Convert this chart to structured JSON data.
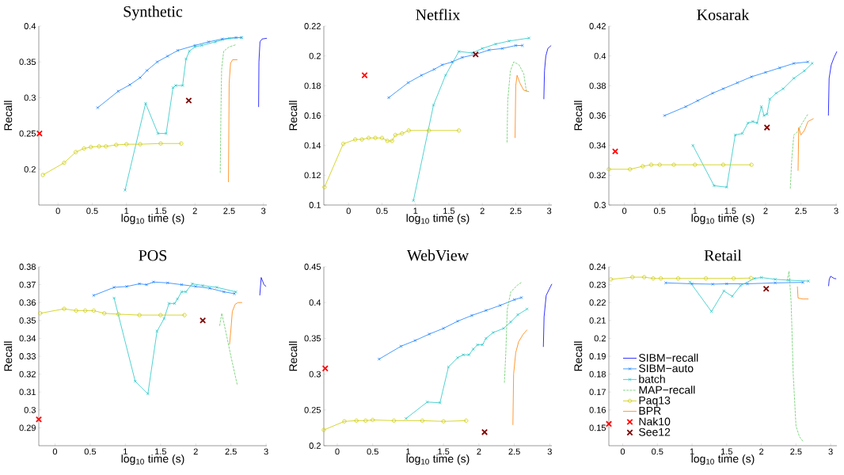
{
  "chart_data": [
    {
      "type": "line",
      "title": "Synthetic",
      "xlabel": "log$_{10}$ time (s)",
      "ylabel": "Recall",
      "xlim": [
        -0.28,
        3.05
      ],
      "ylim": [
        0.15,
        0.4
      ],
      "xticks": [
        0,
        0.5,
        1,
        1.5,
        2,
        2.5,
        3
      ],
      "yticks": [
        0.2,
        0.25,
        0.3,
        0.35,
        0.4
      ],
      "series": [
        {
          "color": "#0000ff",
          "x": [
            2.93,
            2.935,
            2.95,
            2.98,
            3.05
          ],
          "values": [
            0.287,
            0.35,
            0.378,
            0.382,
            0.383
          ]
        },
        {
          "color": "#1a80ff",
          "marker": "cross",
          "x": [
            0.58,
            0.88,
            1.05,
            1.2,
            1.3,
            1.45,
            1.6,
            1.75,
            2.0,
            2.2,
            2.4,
            2.6,
            2.68
          ],
          "values": [
            0.286,
            0.309,
            0.318,
            0.328,
            0.338,
            0.35,
            0.358,
            0.366,
            0.373,
            0.378,
            0.382,
            0.384,
            0.384
          ]
        },
        {
          "color": "#26c6c6",
          "marker": "cross",
          "x": [
            0.98,
            1.28,
            1.46,
            1.58,
            1.68,
            1.72,
            1.82,
            1.87,
            1.92,
            2.0,
            2.1,
            2.3,
            2.5,
            2.68
          ],
          "values": [
            0.171,
            0.292,
            0.25,
            0.25,
            0.314,
            0.317,
            0.317,
            0.354,
            0.365,
            0.371,
            0.373,
            0.378,
            0.383,
            0.384
          ]
        },
        {
          "color": "#66cc66",
          "line_style": "dashed",
          "x": [
            2.37,
            2.38,
            2.39,
            2.42,
            2.5,
            2.6
          ],
          "values": [
            0.195,
            0.28,
            0.34,
            0.365,
            0.371,
            0.374
          ]
        },
        {
          "color": "#cccc00",
          "marker": "circle",
          "x": [
            -0.22,
            0.09,
            0.26,
            0.38,
            0.48,
            0.6,
            0.7,
            0.85,
            1.0,
            1.2,
            1.5,
            1.8
          ],
          "values": [
            0.192,
            0.209,
            0.224,
            0.229,
            0.231,
            0.232,
            0.232,
            0.234,
            0.235,
            0.235,
            0.236,
            0.236
          ]
        },
        {
          "color": "#ff8000",
          "x": [
            2.49,
            2.5,
            2.52,
            2.55,
            2.62
          ],
          "values": [
            0.182,
            0.32,
            0.348,
            0.353,
            0.353
          ]
        },
        {
          "type": "scatter",
          "color": "#ff0000",
          "marker": "cross",
          "x": [
            -0.27
          ],
          "values": [
            0.25
          ]
        },
        {
          "type": "scatter",
          "color": "#800000",
          "marker": "cross",
          "x": [
            1.91
          ],
          "values": [
            0.296
          ]
        }
      ]
    },
    {
      "type": "line",
      "title": "Netflix",
      "xlabel": "log$_{10}$ time (s)",
      "ylabel": "Recall",
      "xlim": [
        -0.37,
        3.04
      ],
      "ylim": [
        0.1,
        0.22
      ],
      "xticks": [
        0,
        0.5,
        1,
        1.5,
        2,
        2.5,
        3
      ],
      "yticks": [
        0.1,
        0.12,
        0.14,
        0.16,
        0.18,
        0.2,
        0.22
      ],
      "series": [
        {
          "color": "#0000ff",
          "x": [
            2.92,
            2.93,
            2.95,
            2.98,
            3.03
          ],
          "values": [
            0.171,
            0.19,
            0.2,
            0.205,
            0.207
          ]
        },
        {
          "color": "#1a80ff",
          "marker": "cross",
          "x": [
            0.6,
            0.89,
            1.09,
            1.28,
            1.4,
            1.55,
            1.7,
            1.9,
            2.1,
            2.3,
            2.5,
            2.6
          ],
          "values": [
            0.172,
            0.182,
            0.187,
            0.191,
            0.194,
            0.196,
            0.199,
            0.201,
            0.204,
            0.205,
            0.207,
            0.207
          ]
        },
        {
          "color": "#26c6c6",
          "marker": "cross",
          "x": [
            0.97,
            1.27,
            1.45,
            1.65,
            1.85,
            2.0,
            2.2,
            2.4,
            2.7
          ],
          "values": [
            0.103,
            0.167,
            0.187,
            0.203,
            0.202,
            0.205,
            0.208,
            0.21,
            0.212
          ]
        },
        {
          "color": "#66cc66",
          "line_style": "dashed",
          "x": [
            2.37,
            2.38,
            2.42,
            2.47,
            2.55,
            2.62,
            2.66
          ],
          "values": [
            0.142,
            0.17,
            0.19,
            0.196,
            0.194,
            0.188,
            0.176
          ]
        },
        {
          "color": "#cccc00",
          "marker": "circle",
          "x": [
            -0.36,
            -0.08,
            0.1,
            0.2,
            0.3,
            0.4,
            0.5,
            0.58,
            0.65,
            0.7,
            0.8,
            0.9,
            1.2,
            1.65
          ],
          "values": [
            0.112,
            0.141,
            0.144,
            0.144,
            0.145,
            0.145,
            0.145,
            0.143,
            0.143,
            0.147,
            0.148,
            0.15,
            0.15,
            0.15
          ]
        },
        {
          "color": "#ff8000",
          "x": [
            2.49,
            2.5,
            2.52,
            2.56,
            2.62,
            2.7
          ],
          "values": [
            0.145,
            0.18,
            0.187,
            0.182,
            0.177,
            0.176
          ]
        },
        {
          "type": "scatter",
          "color": "#ff0000",
          "marker": "cross",
          "x": [
            0.24
          ],
          "values": [
            0.187
          ]
        },
        {
          "type": "scatter",
          "color": "#800000",
          "marker": "cross",
          "x": [
            1.9
          ],
          "values": [
            0.201
          ]
        }
      ]
    },
    {
      "type": "line",
      "title": "Kosarak",
      "xlabel": "log$_{10}$ time (s)",
      "ylabel": "Recall",
      "xlim": [
        -0.22,
        3.01
      ],
      "ylim": [
        0.3,
        0.42
      ],
      "xticks": [
        0,
        0.5,
        1,
        1.5,
        2,
        2.5,
        3
      ],
      "yticks": [
        0.3,
        0.32,
        0.34,
        0.36,
        0.38,
        0.4,
        0.42
      ],
      "series": [
        {
          "color": "#0000ff",
          "x": [
            2.89,
            2.9,
            2.93,
            2.97,
            3.01
          ],
          "values": [
            0.36,
            0.385,
            0.394,
            0.399,
            0.403
          ]
        },
        {
          "color": "#1a80ff",
          "marker": "cross",
          "x": [
            0.57,
            0.87,
            1.04,
            1.25,
            1.4,
            1.6,
            1.8,
            2.0,
            2.2,
            2.4,
            2.6
          ],
          "values": [
            0.36,
            0.366,
            0.37,
            0.375,
            0.378,
            0.382,
            0.386,
            0.389,
            0.392,
            0.395,
            0.396
          ]
        },
        {
          "color": "#26c6c6",
          "marker": "cross",
          "x": [
            0.97,
            1.27,
            1.45,
            1.57,
            1.67,
            1.75,
            1.82,
            1.88,
            1.94,
            1.98,
            2.02,
            2.06,
            2.15,
            2.25,
            2.4,
            2.55,
            2.66
          ],
          "values": [
            0.34,
            0.313,
            0.312,
            0.347,
            0.348,
            0.355,
            0.356,
            0.355,
            0.366,
            0.36,
            0.361,
            0.371,
            0.375,
            0.378,
            0.385,
            0.39,
            0.395
          ]
        },
        {
          "color": "#66cc66",
          "line_style": "dashed",
          "x": [
            2.35,
            2.37,
            2.4,
            2.45,
            2.52,
            2.6
          ],
          "values": [
            0.311,
            0.33,
            0.347,
            0.349,
            0.355,
            0.361
          ]
        },
        {
          "color": "#cccc00",
          "marker": "circle",
          "x": [
            -0.22,
            0.08,
            0.26,
            0.38,
            0.5,
            0.7,
            1.0,
            1.4,
            1.8
          ],
          "values": [
            0.324,
            0.324,
            0.326,
            0.327,
            0.327,
            0.327,
            0.327,
            0.327,
            0.327
          ]
        },
        {
          "color": "#ff8000",
          "x": [
            2.46,
            2.47,
            2.5,
            2.55,
            2.6,
            2.68
          ],
          "values": [
            0.323,
            0.352,
            0.347,
            0.35,
            0.356,
            0.358
          ]
        },
        {
          "type": "scatter",
          "color": "#ff0000",
          "marker": "cross",
          "x": [
            -0.13
          ],
          "values": [
            0.336
          ]
        },
        {
          "type": "scatter",
          "color": "#800000",
          "marker": "cross",
          "x": [
            2.02
          ],
          "values": [
            0.352
          ]
        }
      ]
    },
    {
      "type": "line",
      "title": "POS",
      "xlabel": "log$_{10}$ time (s)",
      "ylabel": "Recall",
      "xlim": [
        -0.23,
        3.01
      ],
      "ylim": [
        0.28,
        0.38
      ],
      "xticks": [
        0,
        0.5,
        1,
        1.5,
        2,
        2.5,
        3
      ],
      "yticks": [
        0.29,
        0.3,
        0.31,
        0.32,
        0.33,
        0.34,
        0.35,
        0.36,
        0.37,
        0.38
      ],
      "series": [
        {
          "color": "#0000ff",
          "x": [
            2.91,
            2.93,
            2.97,
            3.0
          ],
          "values": [
            0.364,
            0.374,
            0.37,
            0.369
          ]
        },
        {
          "color": "#1a80ff",
          "marker": "cross",
          "x": [
            0.55,
            0.84,
            1.02,
            1.2,
            1.3,
            1.4,
            1.6,
            1.8,
            2.0,
            2.2,
            2.4,
            2.55
          ],
          "values": [
            0.364,
            0.3685,
            0.369,
            0.3705,
            0.37,
            0.3715,
            0.371,
            0.37,
            0.369,
            0.368,
            0.366,
            0.365
          ]
        },
        {
          "color": "#26c6c6",
          "marker": "cross",
          "x": [
            0.84,
            1.14,
            1.32,
            1.45,
            1.55,
            1.62,
            1.7,
            1.74,
            1.8,
            1.86,
            1.95,
            2.1,
            2.3,
            2.57
          ],
          "values": [
            0.3625,
            0.316,
            0.309,
            0.344,
            0.351,
            0.3595,
            0.3595,
            0.362,
            0.366,
            0.366,
            0.3705,
            0.3695,
            0.3685,
            0.366
          ]
        },
        {
          "color": "#66cc66",
          "line_style": "dashed",
          "x": [
            2.34,
            2.37,
            2.42,
            2.5,
            2.59
          ],
          "values": [
            0.347,
            0.354,
            0.345,
            0.33,
            0.314
          ]
        },
        {
          "color": "#cccc00",
          "marker": "circle",
          "x": [
            -0.21,
            0.13,
            0.3,
            0.43,
            0.55,
            0.7,
            0.9,
            1.2,
            1.5,
            1.84
          ],
          "values": [
            0.354,
            0.3565,
            0.3555,
            0.3555,
            0.3555,
            0.354,
            0.3535,
            0.353,
            0.353,
            0.353
          ]
        },
        {
          "color": "#ff8000",
          "x": [
            2.48,
            2.5,
            2.52,
            2.56,
            2.6,
            2.66
          ],
          "values": [
            0.3365,
            0.345,
            0.355,
            0.359,
            0.36,
            0.36
          ]
        },
        {
          "type": "scatter",
          "color": "#ff0000",
          "marker": "cross",
          "x": [
            -0.23
          ],
          "values": [
            0.2947
          ]
        },
        {
          "type": "scatter",
          "color": "#800000",
          "marker": "cross",
          "x": [
            2.1
          ],
          "values": [
            0.35
          ]
        }
      ]
    },
    {
      "type": "line",
      "title": "WebView",
      "xlabel": "log$_{10}$ time (s)",
      "ylabel": "Recall",
      "xlim": [
        -0.19,
        3.03
      ],
      "ylim": [
        0.2,
        0.45
      ],
      "xticks": [
        0,
        0.5,
        1,
        1.5,
        2,
        2.5,
        3
      ],
      "yticks": [
        0.2,
        0.25,
        0.3,
        0.35,
        0.4,
        0.45
      ],
      "series": [
        {
          "color": "#0000ff",
          "x": [
            2.91,
            2.92,
            2.95,
            3.0,
            3.03
          ],
          "values": [
            0.338,
            0.38,
            0.41,
            0.42,
            0.426
          ]
        },
        {
          "color": "#1a80ff",
          "marker": "cross",
          "x": [
            0.59,
            0.9,
            1.1,
            1.3,
            1.5,
            1.7,
            1.9,
            2.1,
            2.3,
            2.5,
            2.6
          ],
          "values": [
            0.321,
            0.339,
            0.347,
            0.356,
            0.364,
            0.374,
            0.382,
            0.389,
            0.396,
            0.404,
            0.407
          ]
        },
        {
          "color": "#26c6c6",
          "marker": "cross",
          "x": [
            0.97,
            1.27,
            1.45,
            1.57,
            1.7,
            1.78,
            1.86,
            1.92,
            1.98,
            2.05,
            2.1,
            2.2,
            2.35,
            2.45,
            2.55,
            2.68
          ],
          "values": [
            0.238,
            0.261,
            0.26,
            0.31,
            0.323,
            0.327,
            0.327,
            0.335,
            0.341,
            0.341,
            0.35,
            0.358,
            0.364,
            0.373,
            0.383,
            0.391
          ]
        },
        {
          "color": "#66cc66",
          "line_style": "dashed",
          "x": [
            2.36,
            2.38,
            2.4,
            2.45,
            2.55,
            2.6
          ],
          "values": [
            0.288,
            0.33,
            0.39,
            0.415,
            0.425,
            0.428
          ]
        },
        {
          "color": "#cccc00",
          "marker": "circle",
          "x": [
            -0.19,
            0.1,
            0.27,
            0.4,
            0.5,
            0.8,
            1.2,
            1.5,
            1.82
          ],
          "values": [
            0.222,
            0.234,
            0.235,
            0.235,
            0.236,
            0.235,
            0.235,
            0.234,
            0.235
          ]
        },
        {
          "color": "#ff8000",
          "x": [
            2.48,
            2.49,
            2.52,
            2.56,
            2.62,
            2.68
          ],
          "values": [
            0.229,
            0.3,
            0.33,
            0.345,
            0.355,
            0.362
          ]
        },
        {
          "type": "scatter",
          "color": "#ff0000",
          "marker": "cross",
          "x": [
            -0.17
          ],
          "values": [
            0.308
          ]
        },
        {
          "type": "scatter",
          "color": "#800000",
          "marker": "cross",
          "x": [
            2.08
          ],
          "values": [
            0.219
          ]
        }
      ]
    },
    {
      "type": "line",
      "title": "Retail",
      "xlabel": "log$_{10}$ time (s)",
      "ylabel": "Recall",
      "xlim": [
        -0.2,
        3.09
      ],
      "ylim": [
        0.14,
        0.24
      ],
      "xticks": [
        0,
        0.5,
        1,
        1.5,
        2,
        2.5,
        3
      ],
      "yticks": [
        0.15,
        0.16,
        0.17,
        0.18,
        0.19,
        0.2,
        0.21,
        0.22,
        0.23,
        0.24
      ],
      "legend": "bottom left",
      "series": [
        {
          "name": "SIBM−recall",
          "color": "#0000ff",
          "x": [
            2.97,
            2.98,
            3.0,
            3.05,
            3.08
          ],
          "values": [
            0.2292,
            0.233,
            0.2347,
            0.2335,
            0.2333
          ]
        },
        {
          "name": "SIBM−auto",
          "color": "#1a80ff",
          "marker": "cross",
          "x": [
            0.62,
            1.0,
            1.3,
            1.5,
            1.8,
            2.2,
            2.6
          ],
          "values": [
            0.231,
            0.2305,
            0.2303,
            0.2305,
            0.2305,
            0.231,
            0.2313
          ]
        },
        {
          "name": "batch",
          "color": "#26c6c6",
          "marker": "cross",
          "x": [
            0.97,
            1.28,
            1.46,
            1.58,
            1.7,
            1.9,
            2.0,
            2.2,
            2.4,
            2.68
          ],
          "values": [
            0.2315,
            0.215,
            0.2265,
            0.2235,
            0.2295,
            0.2335,
            0.234,
            0.233,
            0.2325,
            0.232
          ]
        },
        {
          "name": "MAP−recall",
          "color": "#66cc66",
          "line_style": "dashed",
          "x": [
            2.37,
            2.4,
            2.43,
            2.46,
            2.5,
            2.55,
            2.6
          ],
          "values": [
            0.232,
            0.2375,
            0.22,
            0.18,
            0.151,
            0.145,
            0.1425
          ]
        },
        {
          "name": "Paq13",
          "color": "#cccc00",
          "marker": "circle",
          "x": [
            -0.17,
            0.14,
            0.31,
            0.44,
            0.55,
            0.8,
            1.2,
            1.6,
            1.85
          ],
          "values": [
            0.233,
            0.2342,
            0.2342,
            0.2335,
            0.2335,
            0.2335,
            0.2335,
            0.2335,
            0.2337
          ]
        },
        {
          "name": "BPR",
          "color": "#ff8000",
          "x": [
            2.52,
            2.53,
            2.6,
            2.68
          ],
          "values": [
            0.229,
            0.2225,
            0.222,
            0.222
          ]
        },
        {
          "name": "Nak10",
          "type": "scatter",
          "color": "#ff0000",
          "marker": "cross",
          "x": [
            -0.2
          ],
          "values": [
            0.1522
          ]
        },
        {
          "name": "See12",
          "type": "scatter",
          "color": "#800000",
          "marker": "cross",
          "x": [
            2.07
          ],
          "values": [
            0.2277
          ]
        }
      ]
    }
  ]
}
